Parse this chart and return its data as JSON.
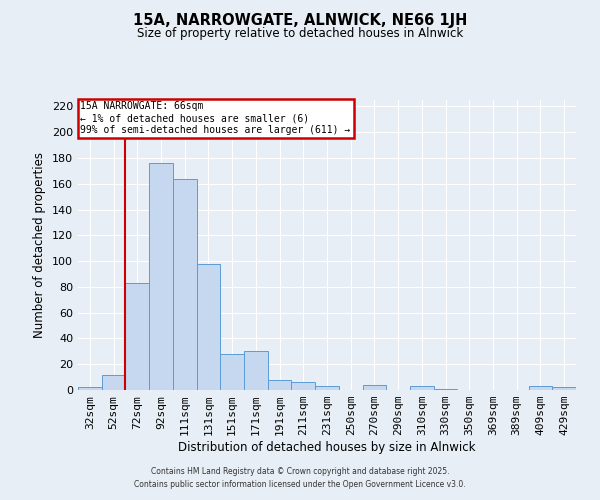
{
  "title": "15A, NARROWGATE, ALNWICK, NE66 1JH",
  "subtitle": "Size of property relative to detached houses in Alnwick",
  "xlabel": "Distribution of detached houses by size in Alnwick",
  "ylabel": "Number of detached properties",
  "bar_labels": [
    "32sqm",
    "52sqm",
    "72sqm",
    "92sqm",
    "111sqm",
    "131sqm",
    "151sqm",
    "171sqm",
    "191sqm",
    "211sqm",
    "231sqm",
    "250sqm",
    "270sqm",
    "290sqm",
    "310sqm",
    "330sqm",
    "350sqm",
    "369sqm",
    "389sqm",
    "409sqm",
    "429sqm"
  ],
  "bar_values": [
    2,
    12,
    83,
    176,
    164,
    98,
    28,
    30,
    8,
    6,
    3,
    0,
    4,
    0,
    3,
    1,
    0,
    0,
    0,
    3,
    2
  ],
  "bar_color": "#c5d8f0",
  "bar_edge_color": "#5b9bd5",
  "vline_color": "#cc0000",
  "ylim": [
    0,
    225
  ],
  "yticks": [
    0,
    20,
    40,
    60,
    80,
    100,
    120,
    140,
    160,
    180,
    200,
    220
  ],
  "annotation_title": "15A NARROWGATE: 66sqm",
  "annotation_line2": "← 1% of detached houses are smaller (6)",
  "annotation_line3": "99% of semi-detached houses are larger (611) →",
  "annotation_box_color": "#ffffff",
  "annotation_box_edge": "#cc0000",
  "bg_color": "#e8eef5",
  "plot_bg_color": "#e8eef5",
  "grid_color": "#ffffff",
  "footer1": "Contains HM Land Registry data © Crown copyright and database right 2025.",
  "footer2": "Contains public sector information licensed under the Open Government Licence v3.0."
}
